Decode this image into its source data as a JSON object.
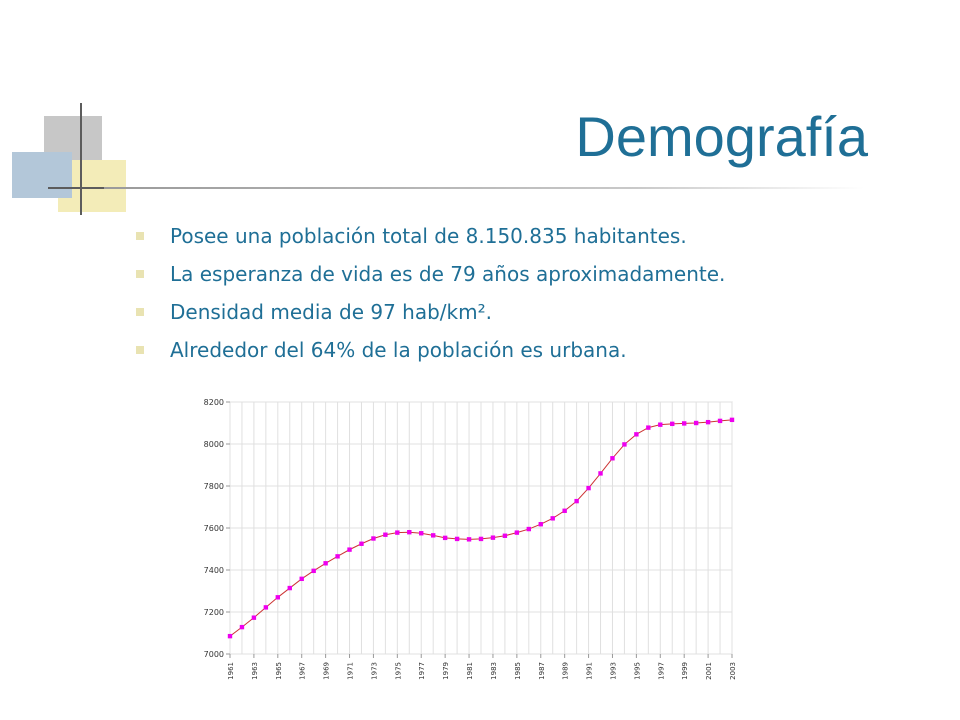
{
  "slide": {
    "title": "Demografía",
    "bullets": [
      "Posee una población total de 8.150.835 habitantes.",
      "La esperanza de vida es de 79 años aproximadamente.",
      "Densidad media de 97 hab/km².",
      "Alrededor del 64% de la población es urbana."
    ]
  },
  "colors": {
    "title": "#1f6f96",
    "bullet_mark": "#e9e3b2",
    "series_line": "#cc3333",
    "series_point": "#ee00ee",
    "grid": "#e0e0e0"
  },
  "chart_data": {
    "type": "line",
    "title": "",
    "xlabel": "",
    "ylabel": "",
    "grid": true,
    "ylim": [
      7000,
      8200
    ],
    "yticks": [
      "7000",
      "7200",
      "7400",
      "7600",
      "7800",
      "8000",
      "8200"
    ],
    "xticks": [
      "1961",
      "1963",
      "1965",
      "1967",
      "1969",
      "1971",
      "1973",
      "1975",
      "1977",
      "1979",
      "1981",
      "1983",
      "1985",
      "1987",
      "1989",
      "1991",
      "1993",
      "1995",
      "1997",
      "1999",
      "2001",
      "2003"
    ],
    "x": [
      1961,
      1962,
      1963,
      1964,
      1965,
      1966,
      1967,
      1968,
      1969,
      1970,
      1971,
      1972,
      1973,
      1974,
      1975,
      1976,
      1977,
      1978,
      1979,
      1980,
      1981,
      1982,
      1983,
      1984,
      1985,
      1986,
      1987,
      1988,
      1989,
      1990,
      1991,
      1992,
      1993,
      1994,
      1995,
      1996,
      1997,
      1998,
      1999,
      2000,
      2001,
      2002,
      2003
    ],
    "series": [
      {
        "values": [
          7085,
          7128,
          7173,
          7222,
          7270,
          7314,
          7358,
          7396,
          7432,
          7465,
          7497,
          7525,
          7550,
          7568,
          7578,
          7580,
          7575,
          7565,
          7553,
          7548,
          7546,
          7548,
          7554,
          7563,
          7578,
          7595,
          7618,
          7646,
          7682,
          7728,
          7790,
          7860,
          7932,
          7998,
          8046,
          8078,
          8092,
          8096,
          8098,
          8100,
          8104,
          8110,
          8115
        ]
      }
    ]
  }
}
